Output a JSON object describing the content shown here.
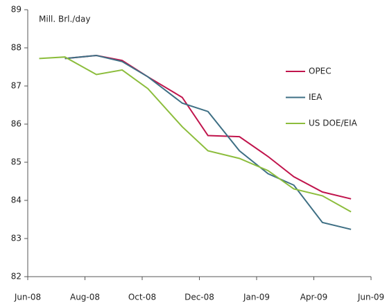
{
  "chart_data": {
    "type": "line",
    "annotation": "Mill. Brl./day",
    "x": [
      0.4,
      1.3,
      2.4,
      3.3,
      4.2,
      5.4,
      6.3,
      7.4,
      8.4,
      9.3,
      10.3,
      11.3
    ],
    "series": [
      {
        "name": "OPEC",
        "color": "#c0144c",
        "values": [
          null,
          87.72,
          87.8,
          87.67,
          87.24,
          86.7,
          85.7,
          85.67,
          85.15,
          84.62,
          84.22,
          84.04
        ]
      },
      {
        "name": "IEA",
        "color": "#3e6f84",
        "values": [
          null,
          87.72,
          87.8,
          87.64,
          87.24,
          86.55,
          86.33,
          85.3,
          84.7,
          84.4,
          83.42,
          83.24
        ]
      },
      {
        "name": "US DOE/EIA",
        "color": "#8cbd3c",
        "values": [
          87.72,
          87.76,
          87.3,
          87.42,
          86.93,
          85.93,
          85.3,
          85.1,
          84.78,
          84.3,
          84.12,
          83.7
        ]
      }
    ],
    "xlim": [
      0,
      12
    ],
    "xticks": [
      {
        "value": 0,
        "label": "Jun-08"
      },
      {
        "value": 2,
        "label": "Aug-08"
      },
      {
        "value": 4,
        "label": "Oct-08"
      },
      {
        "value": 6,
        "label": "Dec-08"
      },
      {
        "value": 8,
        "label": "Jan-09"
      },
      {
        "value": 10,
        "label": "Apr-09"
      },
      {
        "value": 12,
        "label": "Jun-09"
      }
    ],
    "ylim": [
      82,
      89
    ],
    "yticks": [
      82,
      83,
      84,
      85,
      86,
      87,
      88,
      89
    ],
    "grid": false,
    "legend": "right"
  }
}
